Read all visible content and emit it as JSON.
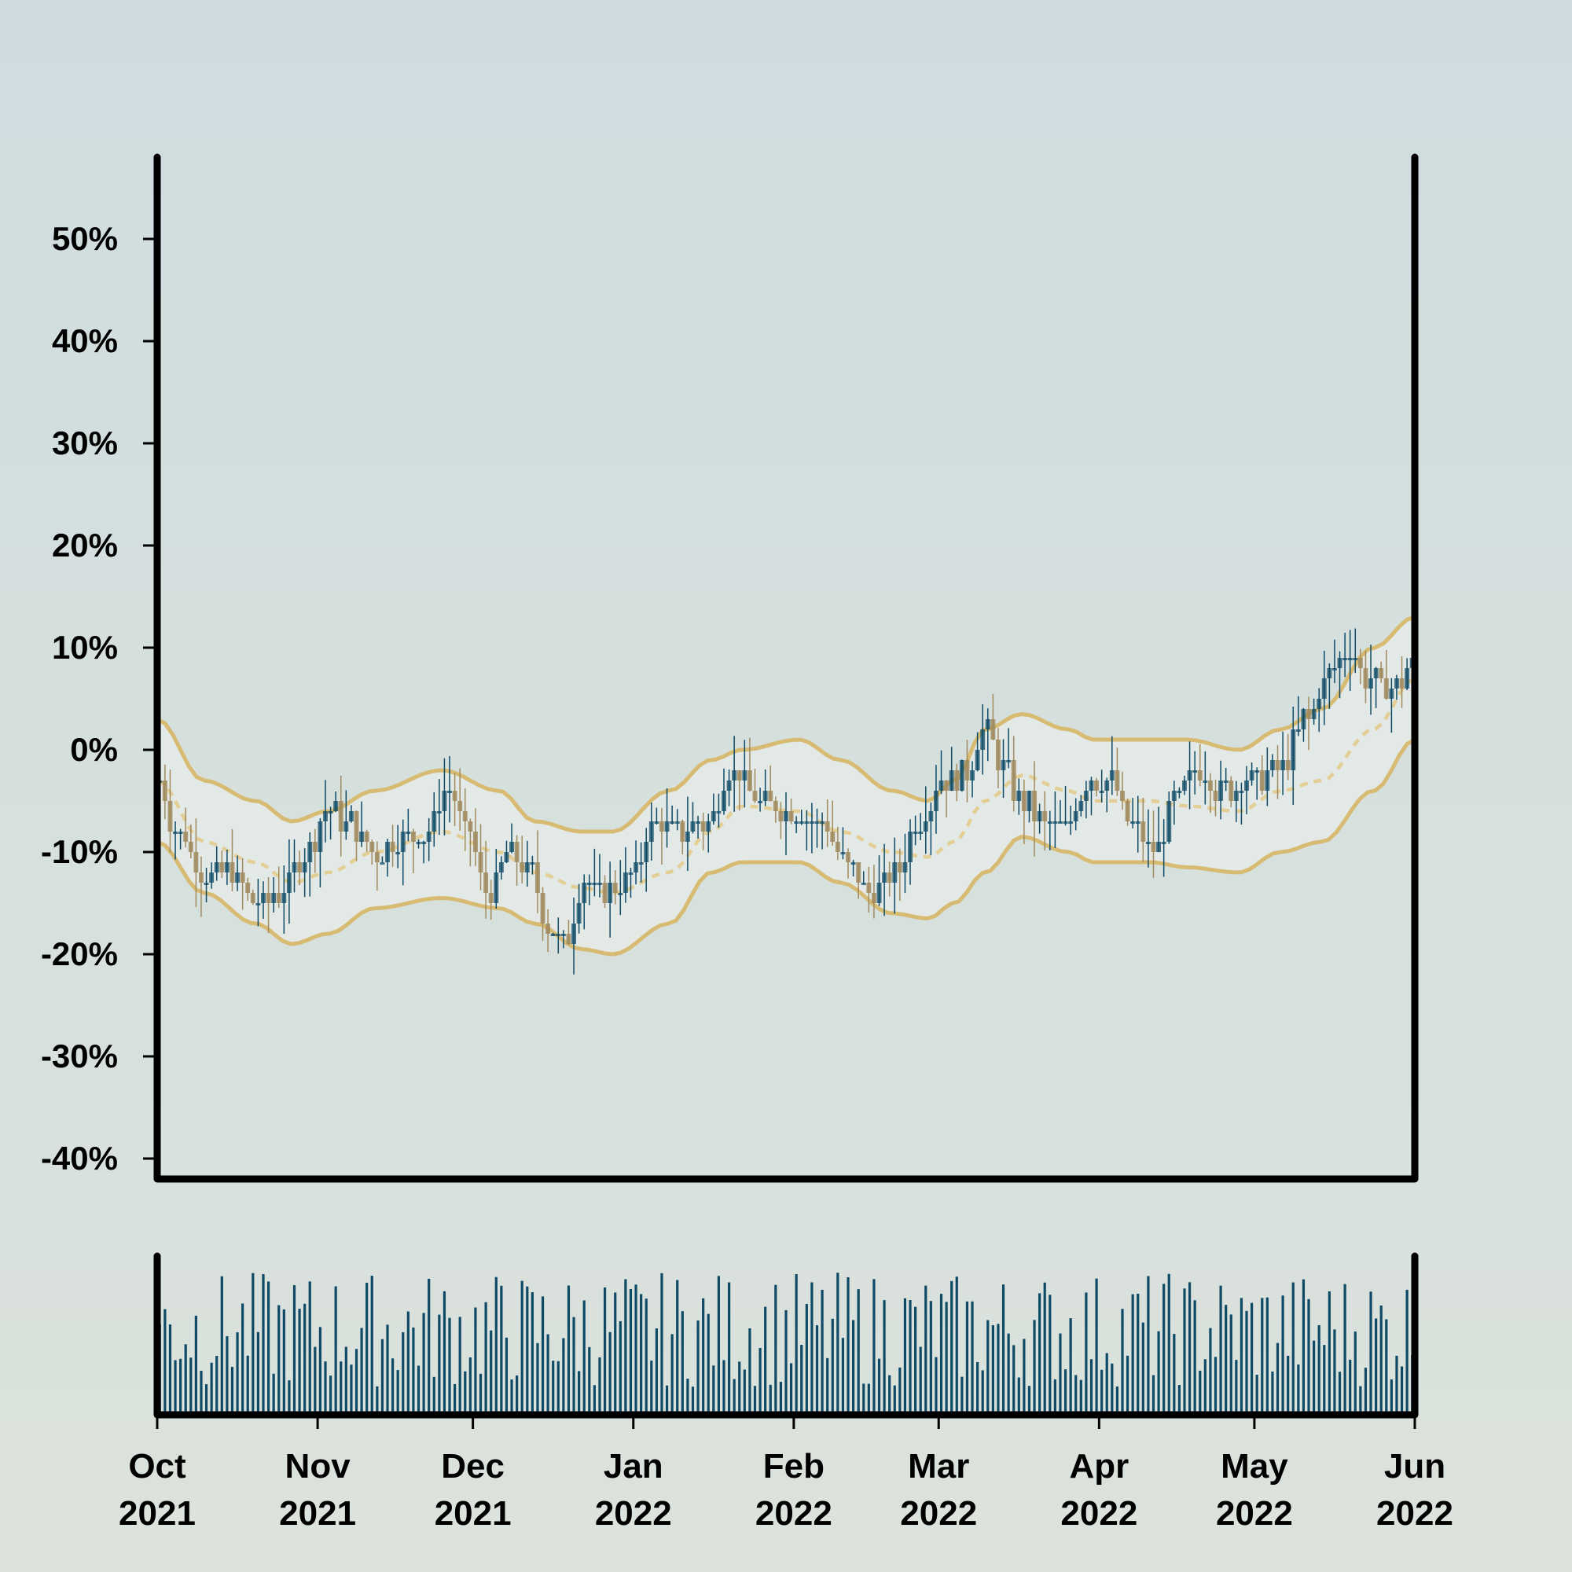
{
  "colors": {
    "up": "#0e4a66",
    "down": "#a08a5e",
    "bands": "#d8bb72",
    "mid_band": "#e3cf95",
    "volume": "#0e4a66",
    "axis": "#000000",
    "band_fill": "#eef0ec"
  },
  "chart_data": [
    {
      "type": "candlestick",
      "title": "",
      "xlabel": "",
      "ylabel": "",
      "ylim": [
        -0.42,
        0.58
      ],
      "y_ticks": [
        {
          "value": 0.5,
          "label": "50%"
        },
        {
          "value": 0.4,
          "label": "40%"
        },
        {
          "value": 0.3,
          "label": "30%"
        },
        {
          "value": 0.2,
          "label": "20%"
        },
        {
          "value": 0.1,
          "label": "10%"
        },
        {
          "value": 0.0,
          "label": "0%"
        },
        {
          "value": -0.1,
          "label": "-10%"
        },
        {
          "value": -0.2,
          "label": "-20%"
        },
        {
          "value": -0.3,
          "label": "-30%"
        },
        {
          "value": -0.4,
          "label": "-40%"
        }
      ],
      "x_range": [
        "2021-10-01",
        "2022-06-01"
      ],
      "x_ticks": [
        {
          "date": "2021-10-01",
          "month": "Oct",
          "year": "2021"
        },
        {
          "date": "2021-11-01",
          "month": "Nov",
          "year": "2021"
        },
        {
          "date": "2021-12-01",
          "month": "Dec",
          "year": "2021"
        },
        {
          "date": "2022-01-01",
          "month": "Jan",
          "year": "2022"
        },
        {
          "date": "2022-02-01",
          "month": "Feb",
          "year": "2022"
        },
        {
          "date": "2022-03-01",
          "month": "Mar",
          "year": "2022"
        },
        {
          "date": "2022-04-01",
          "month": "Apr",
          "year": "2022"
        },
        {
          "date": "2022-05-01",
          "month": "May",
          "year": "2022"
        },
        {
          "date": "2022-06-01",
          "month": "Jun",
          "year": "2022"
        }
      ],
      "close_path": [
        {
          "date": "2021-10-01",
          "value": -0.03
        },
        {
          "date": "2021-10-05",
          "value": -0.08
        },
        {
          "date": "2021-10-10",
          "value": -0.12
        },
        {
          "date": "2021-10-15",
          "value": -0.12
        },
        {
          "date": "2021-10-20",
          "value": -0.15
        },
        {
          "date": "2021-10-25",
          "value": -0.14
        },
        {
          "date": "2021-10-30",
          "value": -0.1
        },
        {
          "date": "2021-11-03",
          "value": -0.06
        },
        {
          "date": "2021-11-07",
          "value": -0.07
        },
        {
          "date": "2021-11-12",
          "value": -0.1
        },
        {
          "date": "2021-11-17",
          "value": -0.09
        },
        {
          "date": "2021-11-22",
          "value": -0.08
        },
        {
          "date": "2021-11-26",
          "value": -0.04
        },
        {
          "date": "2021-11-30",
          "value": -0.08
        },
        {
          "date": "2021-12-04",
          "value": -0.14
        },
        {
          "date": "2021-12-08",
          "value": -0.1
        },
        {
          "date": "2021-12-12",
          "value": -0.12
        },
        {
          "date": "2021-12-16",
          "value": -0.18
        },
        {
          "date": "2021-12-19",
          "value": -0.19
        },
        {
          "date": "2021-12-22",
          "value": -0.13
        },
        {
          "date": "2021-12-27",
          "value": -0.14
        },
        {
          "date": "2022-01-01",
          "value": -0.12
        },
        {
          "date": "2022-01-05",
          "value": -0.07
        },
        {
          "date": "2022-01-10",
          "value": -0.08
        },
        {
          "date": "2022-01-15",
          "value": -0.07
        },
        {
          "date": "2022-01-20",
          "value": -0.02
        },
        {
          "date": "2022-01-25",
          "value": -0.05
        },
        {
          "date": "2022-02-01",
          "value": -0.06
        },
        {
          "date": "2022-02-06",
          "value": -0.07
        },
        {
          "date": "2022-02-11",
          "value": -0.11
        },
        {
          "date": "2022-02-16",
          "value": -0.14
        },
        {
          "date": "2022-02-21",
          "value": -0.12
        },
        {
          "date": "2022-02-25",
          "value": -0.07
        },
        {
          "date": "2022-03-02",
          "value": -0.03
        },
        {
          "date": "2022-03-06",
          "value": -0.02
        },
        {
          "date": "2022-03-10",
          "value": 0.02
        },
        {
          "date": "2022-03-13",
          "value": -0.01
        },
        {
          "date": "2022-03-17",
          "value": -0.05
        },
        {
          "date": "2022-03-21",
          "value": -0.07
        },
        {
          "date": "2022-03-25",
          "value": -0.08
        },
        {
          "date": "2022-03-30",
          "value": -0.03
        },
        {
          "date": "2022-04-03",
          "value": -0.03
        },
        {
          "date": "2022-04-07",
          "value": -0.07
        },
        {
          "date": "2022-04-12",
          "value": -0.1
        },
        {
          "date": "2022-04-16",
          "value": -0.05
        },
        {
          "date": "2022-04-20",
          "value": -0.02
        },
        {
          "date": "2022-04-25",
          "value": -0.04
        },
        {
          "date": "2022-04-30",
          "value": -0.03
        },
        {
          "date": "2022-05-06",
          "value": -0.02
        },
        {
          "date": "2022-05-11",
          "value": 0.03
        },
        {
          "date": "2022-05-15",
          "value": 0.07
        },
        {
          "date": "2022-05-19",
          "value": 0.1
        },
        {
          "date": "2022-05-23",
          "value": 0.07
        },
        {
          "date": "2022-05-27",
          "value": 0.06
        },
        {
          "date": "2022-06-01",
          "value": 0.08
        }
      ],
      "bollinger": {
        "upper": [
          {
            "date": "2021-10-01",
            "value": 0.03
          },
          {
            "date": "2021-10-10",
            "value": -0.03
          },
          {
            "date": "2021-10-20",
            "value": -0.05
          },
          {
            "date": "2021-10-27",
            "value": -0.07
          },
          {
            "date": "2021-11-03",
            "value": -0.06
          },
          {
            "date": "2021-11-12",
            "value": -0.04
          },
          {
            "date": "2021-11-25",
            "value": -0.02
          },
          {
            "date": "2021-12-06",
            "value": -0.04
          },
          {
            "date": "2021-12-13",
            "value": -0.07
          },
          {
            "date": "2021-12-22",
            "value": -0.08
          },
          {
            "date": "2021-12-28",
            "value": -0.08
          },
          {
            "date": "2022-01-08",
            "value": -0.04
          },
          {
            "date": "2022-01-16",
            "value": -0.01
          },
          {
            "date": "2022-01-22",
            "value": 0.0
          },
          {
            "date": "2022-02-02",
            "value": 0.01
          },
          {
            "date": "2022-02-10",
            "value": -0.01
          },
          {
            "date": "2022-02-20",
            "value": -0.04
          },
          {
            "date": "2022-02-27",
            "value": -0.05
          },
          {
            "date": "2022-03-04",
            "value": -0.03
          },
          {
            "date": "2022-03-10",
            "value": 0.02
          },
          {
            "date": "2022-03-17",
            "value": 0.035
          },
          {
            "date": "2022-03-26",
            "value": 0.02
          },
          {
            "date": "2022-03-31",
            "value": 0.01
          },
          {
            "date": "2022-04-11",
            "value": 0.01
          },
          {
            "date": "2022-04-18",
            "value": 0.01
          },
          {
            "date": "2022-04-28",
            "value": 0.0
          },
          {
            "date": "2022-05-06",
            "value": 0.02
          },
          {
            "date": "2022-05-14",
            "value": 0.04
          },
          {
            "date": "2022-05-24",
            "value": 0.1
          },
          {
            "date": "2022-06-01",
            "value": 0.13
          }
        ],
        "middle": [
          {
            "date": "2021-10-01",
            "value": -0.03
          },
          {
            "date": "2021-10-10",
            "value": -0.09
          },
          {
            "date": "2021-10-20",
            "value": -0.11
          },
          {
            "date": "2021-10-27",
            "value": -0.13
          },
          {
            "date": "2021-11-03",
            "value": -0.12
          },
          {
            "date": "2021-11-12",
            "value": -0.1
          },
          {
            "date": "2021-11-25",
            "value": -0.08
          },
          {
            "date": "2021-12-06",
            "value": -0.1
          },
          {
            "date": "2021-12-13",
            "value": -0.12
          },
          {
            "date": "2021-12-22",
            "value": -0.135
          },
          {
            "date": "2021-12-28",
            "value": -0.14
          },
          {
            "date": "2022-01-08",
            "value": -0.12
          },
          {
            "date": "2022-01-16",
            "value": -0.08
          },
          {
            "date": "2022-01-22",
            "value": -0.055
          },
          {
            "date": "2022-02-02",
            "value": -0.06
          },
          {
            "date": "2022-02-10",
            "value": -0.08
          },
          {
            "date": "2022-02-20",
            "value": -0.1
          },
          {
            "date": "2022-02-27",
            "value": -0.105
          },
          {
            "date": "2022-03-04",
            "value": -0.09
          },
          {
            "date": "2022-03-10",
            "value": -0.05
          },
          {
            "date": "2022-03-17",
            "value": -0.025
          },
          {
            "date": "2022-03-26",
            "value": -0.04
          },
          {
            "date": "2022-03-31",
            "value": -0.05
          },
          {
            "date": "2022-04-11",
            "value": -0.05
          },
          {
            "date": "2022-04-18",
            "value": -0.055
          },
          {
            "date": "2022-04-28",
            "value": -0.06
          },
          {
            "date": "2022-05-06",
            "value": -0.04
          },
          {
            "date": "2022-05-14",
            "value": -0.03
          },
          {
            "date": "2022-05-24",
            "value": 0.02
          },
          {
            "date": "2022-06-01",
            "value": 0.07
          }
        ],
        "lower": [
          {
            "date": "2021-10-01",
            "value": -0.09
          },
          {
            "date": "2021-10-10",
            "value": -0.14
          },
          {
            "date": "2021-10-20",
            "value": -0.17
          },
          {
            "date": "2021-10-27",
            "value": -0.19
          },
          {
            "date": "2021-11-03",
            "value": -0.18
          },
          {
            "date": "2021-11-12",
            "value": -0.155
          },
          {
            "date": "2021-11-25",
            "value": -0.145
          },
          {
            "date": "2021-12-06",
            "value": -0.155
          },
          {
            "date": "2021-12-13",
            "value": -0.17
          },
          {
            "date": "2021-12-22",
            "value": -0.195
          },
          {
            "date": "2021-12-28",
            "value": -0.2
          },
          {
            "date": "2022-01-08",
            "value": -0.17
          },
          {
            "date": "2022-01-16",
            "value": -0.12
          },
          {
            "date": "2022-01-22",
            "value": -0.11
          },
          {
            "date": "2022-02-02",
            "value": -0.11
          },
          {
            "date": "2022-02-10",
            "value": -0.13
          },
          {
            "date": "2022-02-20",
            "value": -0.16
          },
          {
            "date": "2022-02-27",
            "value": -0.165
          },
          {
            "date": "2022-03-04",
            "value": -0.15
          },
          {
            "date": "2022-03-10",
            "value": -0.12
          },
          {
            "date": "2022-03-17",
            "value": -0.085
          },
          {
            "date": "2022-03-26",
            "value": -0.1
          },
          {
            "date": "2022-03-31",
            "value": -0.11
          },
          {
            "date": "2022-04-11",
            "value": -0.11
          },
          {
            "date": "2022-04-18",
            "value": -0.115
          },
          {
            "date": "2022-04-28",
            "value": -0.12
          },
          {
            "date": "2022-05-06",
            "value": -0.1
          },
          {
            "date": "2022-05-14",
            "value": -0.09
          },
          {
            "date": "2022-05-24",
            "value": -0.04
          },
          {
            "date": "2022-06-01",
            "value": 0.01
          }
        ]
      },
      "series": [
        {
          "kind": "candles",
          "candle_count": 243
        },
        {
          "kind": "bollinger_upper"
        },
        {
          "kind": "bollinger_middle",
          "style": "dashed"
        },
        {
          "kind": "bollinger_lower"
        }
      ]
    },
    {
      "type": "bar",
      "title": "",
      "xlabel": "",
      "ylabel": "",
      "x_range": [
        "2021-10-01",
        "2022-06-01"
      ],
      "series": [
        {
          "kind": "volume",
          "bar_count": 243
        }
      ],
      "value_range": [
        0.05,
        1.0
      ]
    }
  ]
}
